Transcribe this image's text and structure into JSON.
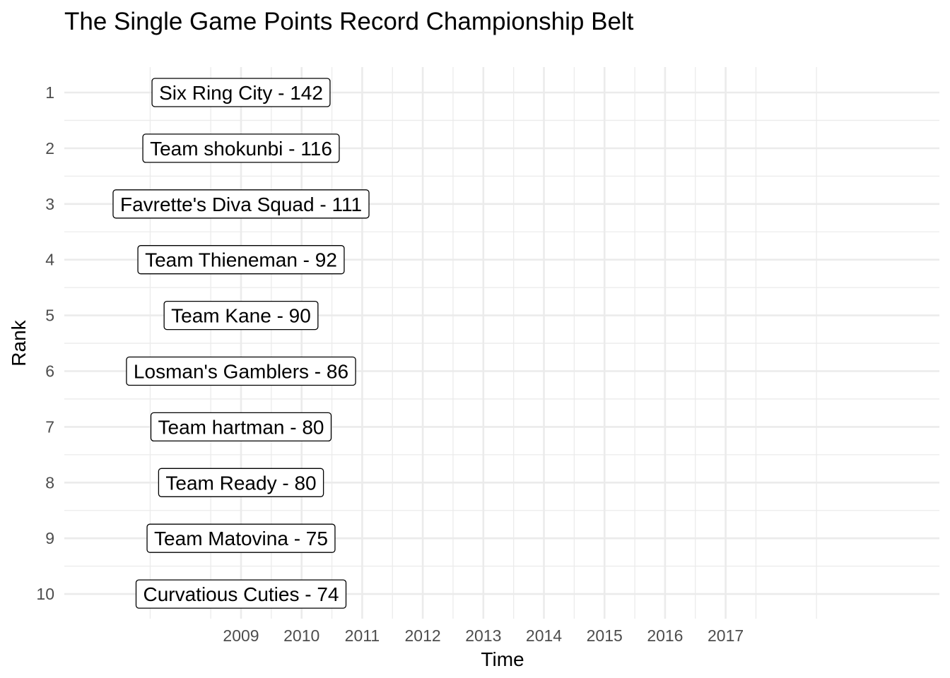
{
  "chart_data": {
    "type": "label",
    "title": "The Single Game Points Record Championship Belt",
    "xlabel": "Time",
    "ylabel": "Rank",
    "x_ticks": [
      "2009",
      "2010",
      "2011",
      "2012",
      "2013",
      "2014",
      "2015",
      "2016",
      "2017"
    ],
    "y_ticks": [
      1,
      2,
      3,
      4,
      5,
      6,
      7,
      8,
      9,
      10
    ],
    "grid": true,
    "legend": "none",
    "background": "#ffffff",
    "grid_color": "#ebebeb",
    "points": [
      {
        "rank": 1,
        "x": "2009",
        "label": "Six Ring City - 142"
      },
      {
        "rank": 2,
        "x": "2009",
        "label": "Team shokunbi - 116"
      },
      {
        "rank": 3,
        "x": "2009",
        "label": "Favrette's Diva Squad - 111"
      },
      {
        "rank": 4,
        "x": "2009",
        "label": "Team Thieneman - 92"
      },
      {
        "rank": 5,
        "x": "2009",
        "label": "Team Kane - 90"
      },
      {
        "rank": 6,
        "x": "2009",
        "label": "Losman's Gamblers - 86"
      },
      {
        "rank": 7,
        "x": "2009",
        "label": "Team hartman - 80"
      },
      {
        "rank": 8,
        "x": "2009",
        "label": "Team Ready - 80"
      },
      {
        "rank": 9,
        "x": "2009",
        "label": "Team Matovina - 75"
      },
      {
        "rank": 10,
        "x": "2009",
        "label": "Curvatious Cuties - 74"
      }
    ]
  }
}
